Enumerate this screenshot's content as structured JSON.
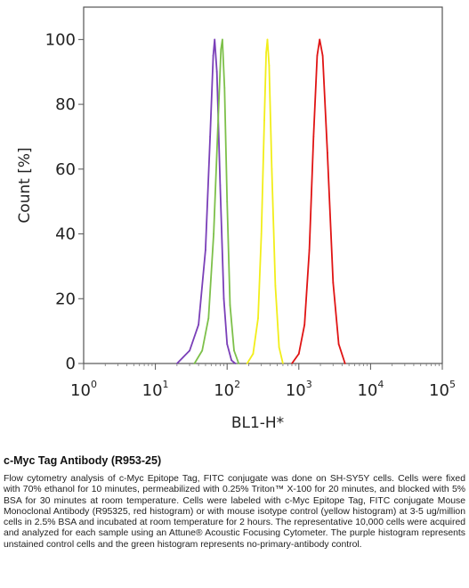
{
  "chart_data": {
    "type": "area",
    "xscale": "log",
    "xlim": [
      1,
      100000
    ],
    "ylim": [
      0,
      110
    ],
    "xlabel": "BL1-H*",
    "ylabel": "Count  [%]",
    "xticks": [
      {
        "base": "10",
        "exp": "0",
        "value": 1
      },
      {
        "base": "10",
        "exp": "1",
        "value": 10
      },
      {
        "base": "10",
        "exp": "2",
        "value": 100
      },
      {
        "base": "10",
        "exp": "3",
        "value": 1000
      },
      {
        "base": "10",
        "exp": "4",
        "value": 10000
      },
      {
        "base": "10",
        "exp": "5",
        "value": 100000
      }
    ],
    "yticks": [
      "0",
      "20",
      "40",
      "60",
      "80",
      "100"
    ],
    "series": [
      {
        "color": "#7a3fb8",
        "center": 67,
        "x": [
          20,
          30,
          40,
          50,
          58,
          64,
          67,
          72,
          80,
          90,
          100,
          115,
          130
        ],
        "y": [
          0,
          4,
          12,
          35,
          70,
          95,
          100,
          90,
          55,
          20,
          6,
          1,
          0
        ]
      },
      {
        "color": "#7dc04a",
        "center": 85,
        "x": [
          35,
          45,
          55,
          65,
          75,
          82,
          86,
          92,
          100,
          110,
          125,
          145
        ],
        "y": [
          0,
          4,
          14,
          40,
          75,
          97,
          100,
          85,
          50,
          18,
          4,
          0
        ]
      },
      {
        "color": "#f2ee1a",
        "center": 360,
        "x": [
          190,
          230,
          270,
          300,
          330,
          350,
          365,
          385,
          420,
          470,
          530,
          600
        ],
        "y": [
          0,
          3,
          14,
          40,
          75,
          96,
          100,
          92,
          60,
          24,
          5,
          0
        ]
      },
      {
        "color": "#e01414",
        "center": 1900,
        "x": [
          800,
          1000,
          1200,
          1400,
          1600,
          1800,
          1950,
          2150,
          2500,
          3000,
          3600,
          4400
        ],
        "y": [
          0,
          3,
          12,
          35,
          70,
          95,
          100,
          95,
          65,
          25,
          6,
          0
        ]
      }
    ]
  },
  "caption": {
    "title": "c-Myc Tag Antibody (R953-25)",
    "body": "Flow cytometry analysis of c-Myc Epitope Tag, FITC conjugate was done on SH-SY5Y cells. Cells were fixed with 70% ethanol for 10 minutes, permeabilized with 0.25% Triton™ X-100 for 20 minutes, and blocked with 5% BSA for 30 minutes at room temperature. Cells were labeled with c-Myc Epitope Tag, FITC conjugate Mouse Monoclonal Antibody (R95325, red histogram) or with mouse isotype control (yellow histogram) at 3-5 ug/million cells in 2.5% BSA and incubated at room temperature for 2 hours. The representative 10,000 cells were acquired and analyzed for each sample using an Attune® Acoustic Focusing Cytometer. The purple histogram represents unstained control cells and the green histogram represents no-primary-antibody control."
  }
}
